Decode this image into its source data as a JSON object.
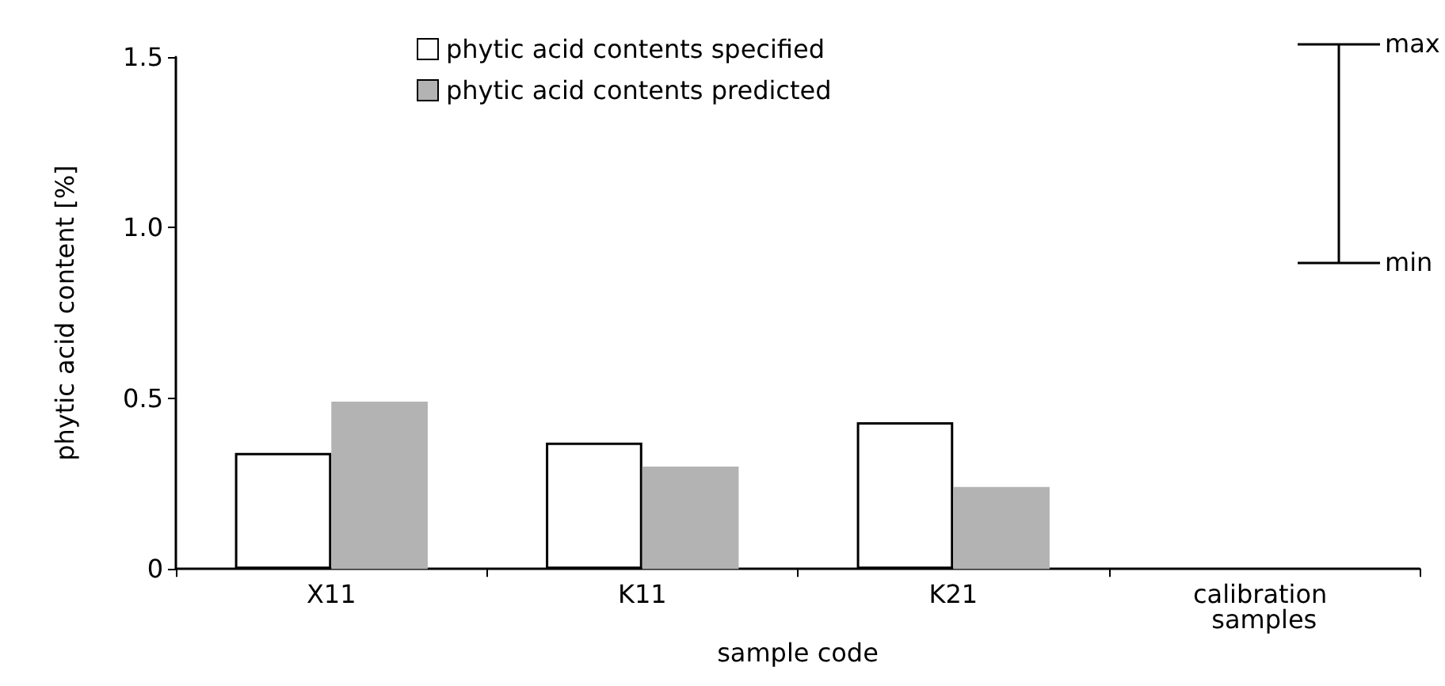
{
  "chart_data": {
    "type": "bar",
    "xlabel": "sample code",
    "ylabel": "phytic acid content [%]",
    "categories": [
      "X11",
      "K11",
      "K21",
      "calibration samples"
    ],
    "series": [
      {
        "name": "phytic acid contents specified",
        "color": "#ffffff",
        "values": [
          0.34,
          0.37,
          0.43,
          null
        ]
      },
      {
        "name": "phytic acid contents predicted",
        "color": "#b3b3b3",
        "values": [
          0.49,
          0.3,
          0.24,
          null
        ]
      }
    ],
    "ylim": [
      0,
      1.5
    ],
    "yticks": [
      0,
      0.5,
      {
        "value": 1,
        "label": "1.0"
      },
      1.5
    ],
    "annotations": [
      "max",
      "min"
    ],
    "grid": false,
    "legend": "top"
  }
}
